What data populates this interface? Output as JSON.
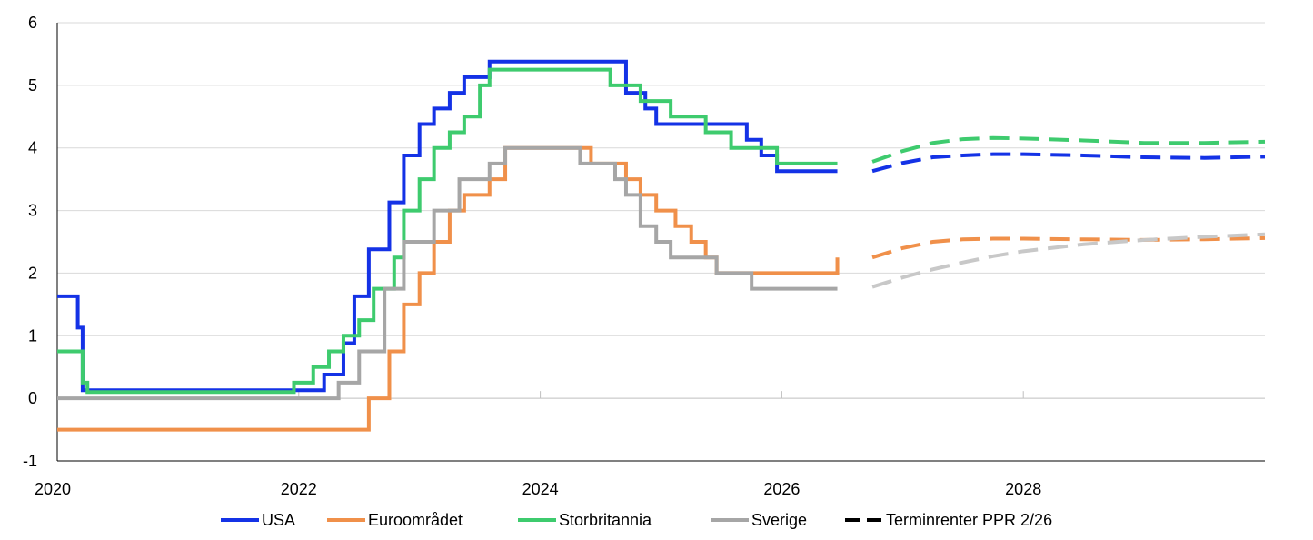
{
  "chart_data": {
    "type": "line",
    "title": "",
    "xlabel": "",
    "ylabel": "",
    "xlim": [
      2020.0,
      2030.0
    ],
    "ylim": [
      -1,
      6
    ],
    "grid": "horizontal",
    "legend_position": "bottom",
    "x_ticks": [
      "2020",
      "2022",
      "2024",
      "2026",
      "2028"
    ],
    "y_ticks": [
      "-1",
      "0",
      "1",
      "2",
      "3",
      "4",
      "5",
      "6"
    ],
    "series": [
      {
        "name": "USA",
        "color": "#1432e6",
        "step": true,
        "points": [
          [
            2020.0,
            1.63
          ],
          [
            2020.17,
            1.13
          ],
          [
            2020.21,
            0.13
          ],
          [
            2022.21,
            0.38
          ],
          [
            2022.37,
            0.88
          ],
          [
            2022.46,
            1.63
          ],
          [
            2022.58,
            2.38
          ],
          [
            2022.75,
            3.13
          ],
          [
            2022.87,
            3.88
          ],
          [
            2023.0,
            4.38
          ],
          [
            2023.12,
            4.63
          ],
          [
            2023.25,
            4.88
          ],
          [
            2023.37,
            5.13
          ],
          [
            2023.58,
            5.38
          ],
          [
            2024.71,
            4.88
          ],
          [
            2024.87,
            4.63
          ],
          [
            2024.96,
            4.38
          ],
          [
            2025.71,
            4.13
          ],
          [
            2025.83,
            3.88
          ],
          [
            2025.96,
            3.63
          ],
          [
            2026.46,
            3.63
          ]
        ]
      },
      {
        "name": "Euroområdet",
        "color": "#f0904a",
        "step": true,
        "points": [
          [
            2020.0,
            -0.5
          ],
          [
            2022.58,
            0.0
          ],
          [
            2022.75,
            0.75
          ],
          [
            2022.87,
            1.5
          ],
          [
            2023.0,
            2.0
          ],
          [
            2023.12,
            2.5
          ],
          [
            2023.25,
            3.0
          ],
          [
            2023.37,
            3.25
          ],
          [
            2023.58,
            3.5
          ],
          [
            2023.71,
            4.0
          ],
          [
            2024.42,
            3.75
          ],
          [
            2024.71,
            3.5
          ],
          [
            2024.83,
            3.25
          ],
          [
            2024.96,
            3.0
          ],
          [
            2025.12,
            2.75
          ],
          [
            2025.25,
            2.5
          ],
          [
            2025.37,
            2.25
          ],
          [
            2025.46,
            2.0
          ],
          [
            2026.46,
            2.0
          ],
          [
            2026.46,
            2.25
          ]
        ]
      },
      {
        "name": "Storbritannia",
        "color": "#3ecb6e",
        "step": true,
        "points": [
          [
            2020.0,
            0.75
          ],
          [
            2020.21,
            0.25
          ],
          [
            2020.25,
            0.1
          ],
          [
            2021.96,
            0.25
          ],
          [
            2022.12,
            0.5
          ],
          [
            2022.25,
            0.75
          ],
          [
            2022.37,
            1.0
          ],
          [
            2022.5,
            1.25
          ],
          [
            2022.62,
            1.75
          ],
          [
            2022.79,
            2.25
          ],
          [
            2022.87,
            3.0
          ],
          [
            2023.0,
            3.5
          ],
          [
            2023.12,
            4.0
          ],
          [
            2023.25,
            4.25
          ],
          [
            2023.37,
            4.5
          ],
          [
            2023.5,
            5.0
          ],
          [
            2023.58,
            5.25
          ],
          [
            2024.58,
            5.0
          ],
          [
            2024.83,
            4.75
          ],
          [
            2025.08,
            4.5
          ],
          [
            2025.37,
            4.25
          ],
          [
            2025.58,
            4.0
          ],
          [
            2025.96,
            3.75
          ],
          [
            2026.46,
            3.75
          ]
        ]
      },
      {
        "name": "Sverige",
        "color": "#a6a6a6",
        "step": true,
        "points": [
          [
            2020.0,
            0.0
          ],
          [
            2022.33,
            0.25
          ],
          [
            2022.5,
            0.75
          ],
          [
            2022.71,
            1.75
          ],
          [
            2022.87,
            2.5
          ],
          [
            2023.12,
            3.0
          ],
          [
            2023.33,
            3.5
          ],
          [
            2023.58,
            3.75
          ],
          [
            2023.71,
            4.0
          ],
          [
            2024.33,
            3.75
          ],
          [
            2024.62,
            3.5
          ],
          [
            2024.71,
            3.25
          ],
          [
            2024.83,
            2.75
          ],
          [
            2024.96,
            2.5
          ],
          [
            2025.08,
            2.25
          ],
          [
            2025.46,
            2.0
          ],
          [
            2025.75,
            1.75
          ],
          [
            2026.46,
            1.75
          ]
        ]
      },
      {
        "color": "#3ecb6e",
        "dashed": true,
        "points": [
          [
            2026.75,
            3.78
          ],
          [
            2027.0,
            3.95
          ],
          [
            2027.25,
            4.08
          ],
          [
            2027.5,
            4.14
          ],
          [
            2027.75,
            4.16
          ],
          [
            2028.0,
            4.15
          ],
          [
            2028.5,
            4.12
          ],
          [
            2029.0,
            4.08
          ],
          [
            2029.5,
            4.08
          ],
          [
            2030.0,
            4.1
          ]
        ]
      },
      {
        "color": "#1432e6",
        "dashed": true,
        "points": [
          [
            2026.75,
            3.63
          ],
          [
            2027.0,
            3.76
          ],
          [
            2027.25,
            3.85
          ],
          [
            2027.5,
            3.88
          ],
          [
            2027.75,
            3.9
          ],
          [
            2028.0,
            3.9
          ],
          [
            2028.5,
            3.88
          ],
          [
            2029.0,
            3.85
          ],
          [
            2029.5,
            3.84
          ],
          [
            2030.0,
            3.86
          ]
        ]
      },
      {
        "color": "#f0904a",
        "dashed": true,
        "points": [
          [
            2026.75,
            2.25
          ],
          [
            2027.0,
            2.4
          ],
          [
            2027.25,
            2.5
          ],
          [
            2027.5,
            2.54
          ],
          [
            2027.75,
            2.55
          ],
          [
            2028.0,
            2.55
          ],
          [
            2028.5,
            2.54
          ],
          [
            2029.0,
            2.53
          ],
          [
            2029.5,
            2.54
          ],
          [
            2030.0,
            2.56
          ]
        ]
      },
      {
        "color": "#c8c8c8",
        "dashed": true,
        "points": [
          [
            2026.75,
            1.78
          ],
          [
            2027.0,
            1.93
          ],
          [
            2027.25,
            2.06
          ],
          [
            2027.5,
            2.17
          ],
          [
            2027.75,
            2.27
          ],
          [
            2028.0,
            2.35
          ],
          [
            2028.5,
            2.46
          ],
          [
            2029.0,
            2.53
          ],
          [
            2029.5,
            2.58
          ],
          [
            2030.0,
            2.62
          ]
        ]
      }
    ],
    "legend": [
      {
        "label": "USA",
        "color": "#1432e6",
        "dashed": false
      },
      {
        "label": "Euroområdet",
        "color": "#f0904a",
        "dashed": false
      },
      {
        "label": "Storbritannia",
        "color": "#3ecb6e",
        "dashed": false
      },
      {
        "label": "Sverige",
        "color": "#a6a6a6",
        "dashed": false
      },
      {
        "label": "Terminrenter PPR 2/26",
        "color": "#000000",
        "dashed": true
      }
    ]
  }
}
